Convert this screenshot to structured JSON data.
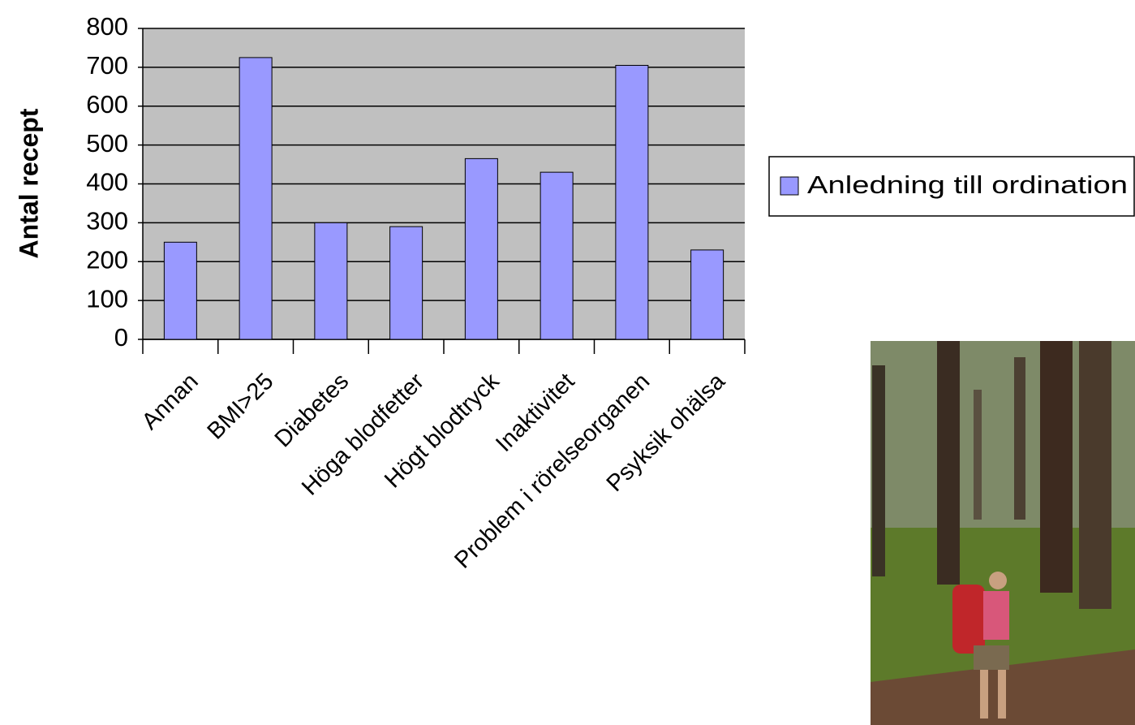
{
  "chart_data": {
    "type": "bar",
    "y_label": "Antal recept",
    "categories": [
      "Annan",
      "BMI>25",
      "Diabetes",
      "Höga blodfetter",
      "Högt blodtryck",
      "Inaktivitet",
      "Problem i rörelseorganen",
      "Psyksik ohälsa"
    ],
    "series": [
      {
        "name": "Anledning till ordination",
        "color": "#9999ff",
        "values": [
          250,
          725,
          300,
          290,
          465,
          430,
          705,
          230
        ]
      }
    ],
    "ylim": [
      0,
      800
    ],
    "yticks": [
      0,
      100,
      200,
      300,
      400,
      500,
      600,
      700,
      800
    ],
    "grid": true,
    "legend": "right"
  }
}
